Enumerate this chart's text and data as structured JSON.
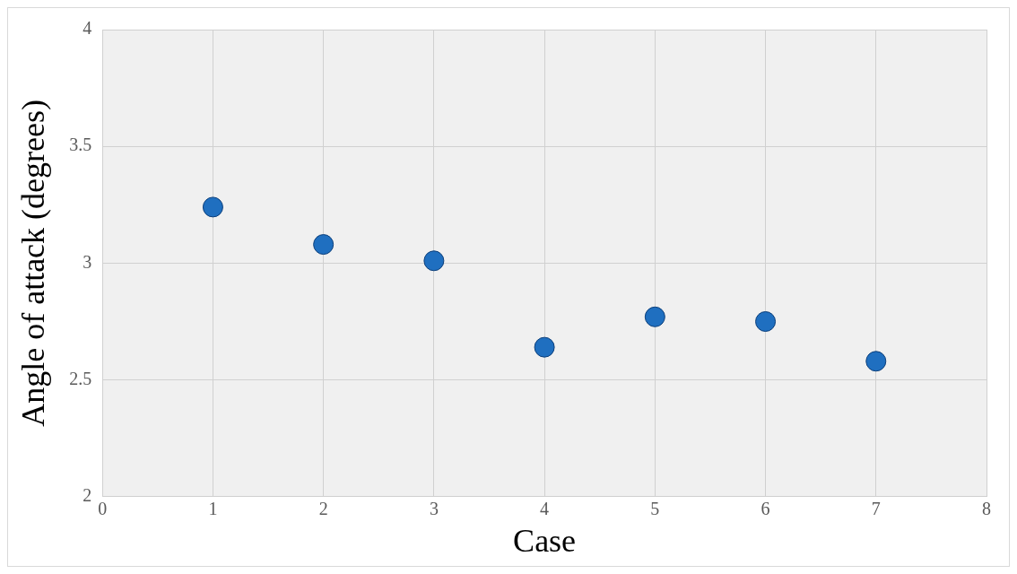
{
  "chart_data": {
    "type": "scatter",
    "xlabel": "Case",
    "ylabel": "Angle of attack (degrees)",
    "x": [
      1,
      2,
      3,
      4,
      5,
      6,
      7
    ],
    "values": [
      3.24,
      3.08,
      3.01,
      2.64,
      2.77,
      2.75,
      2.58
    ],
    "color": "#1f6fc0",
    "xlim": [
      0,
      8
    ],
    "xticks": [
      0,
      1,
      2,
      3,
      4,
      5,
      6,
      7,
      8
    ],
    "ylim": [
      2,
      4
    ],
    "yticks": [
      2,
      2.5,
      3,
      3.5,
      4
    ],
    "grid": true,
    "legend": false,
    "marker": "circle"
  }
}
